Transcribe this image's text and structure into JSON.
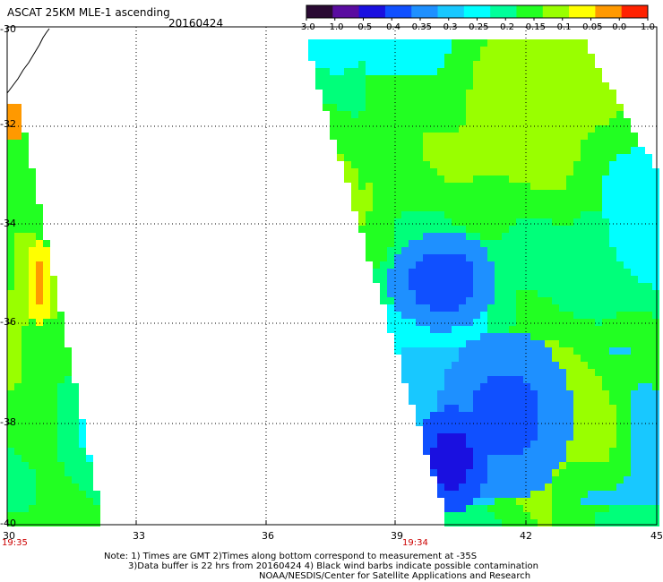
{
  "title": "ASCAT 25KM MLE-1 ascending",
  "date": "20160424",
  "colorbar": {
    "labels": [
      "-3.0",
      "-1.0",
      "-0.5",
      "-0.4",
      "-0.35",
      "-0.3",
      "-0.25",
      "-0.2",
      "-0.15",
      "-0.1",
      "-0.05",
      "0.0",
      "1.0"
    ],
    "colors": [
      "#2a0a33",
      "#5a0ca0",
      "#1a10e0",
      "#1050ff",
      "#1e90ff",
      "#18c8ff",
      "#00ffff",
      "#00ff9a",
      "#22ff22",
      "#99ff00",
      "#ffff00",
      "#ff9900",
      "#ff2200"
    ]
  },
  "lat_labels": [
    "-30",
    "-32",
    "-34",
    "-36",
    "-38",
    "-40"
  ],
  "lon_labels": [
    "30",
    "33",
    "36",
    "39",
    "42",
    "45"
  ],
  "times": {
    "left": "19:35",
    "right": "19:34"
  },
  "notes": {
    "line1": "Note: 1) Times are GMT 2)Times along bottom correspond to measurement at -35S",
    "line2": "3)Data buffer is 22 hrs from 20160424 4) Black wind barbs indicate possible contamination",
    "line3": "NOAA/NESDIS/Center for Satellite Applications and Research"
  }
}
